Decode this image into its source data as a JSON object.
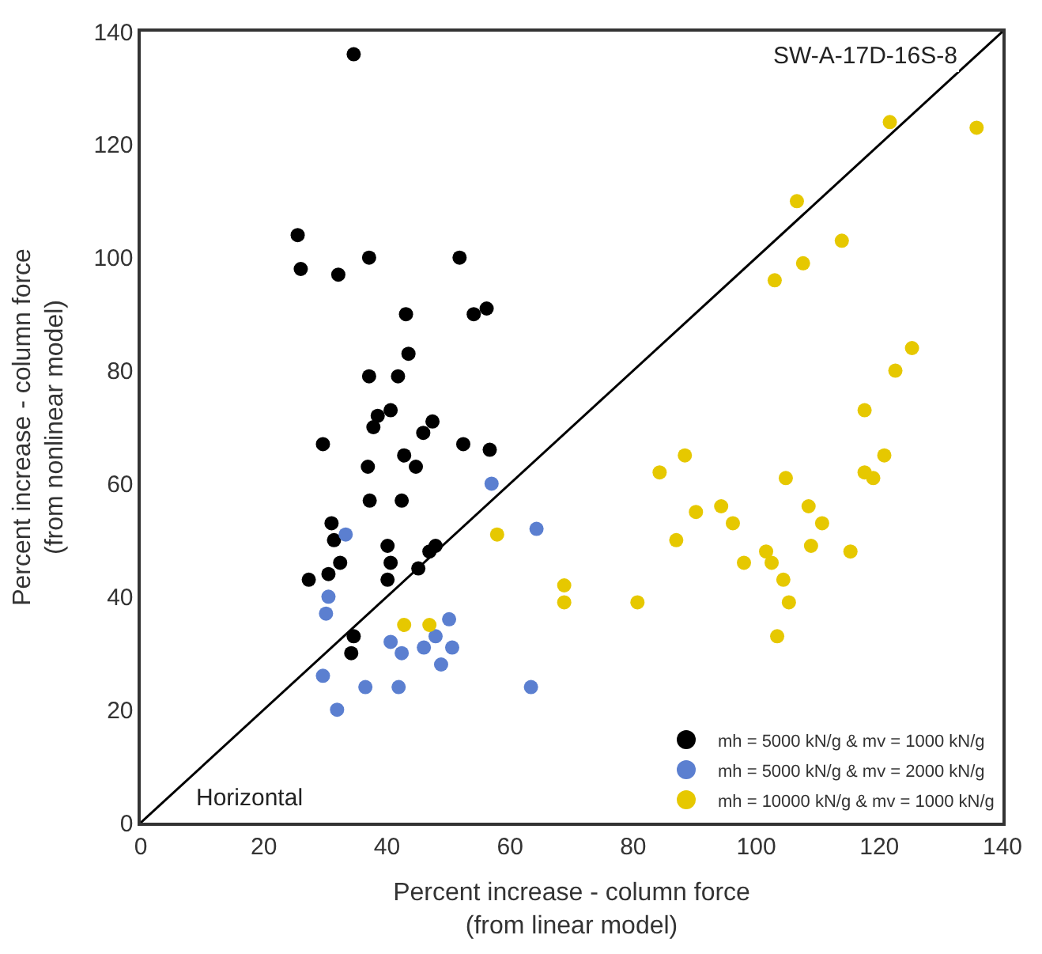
{
  "chart_data": {
    "type": "scatter",
    "xlabel": "Percent increase - column force\n(from linear model)",
    "ylabel": "Percent increase - column force\n(from nonlinear model)",
    "xlim": [
      0,
      140
    ],
    "ylim": [
      0,
      140
    ],
    "xticks": [
      0,
      20,
      40,
      60,
      80,
      100,
      120,
      140
    ],
    "yticks": [
      0,
      20,
      40,
      60,
      80,
      100,
      120,
      140
    ],
    "legend": "bottom right",
    "marker": "circle",
    "annotations": [
      "SW-A-17D-16S-8",
      "Horizontal"
    ],
    "series": [
      {
        "name": "mh = 5000 kN/g & mv = 1000 kN/g",
        "color": "#000000",
        "x": [
          34.6,
          25.5,
          26,
          32.1,
          37.1,
          51.8,
          43.1,
          54.1,
          56.2,
          43.5,
          37.1,
          41.8,
          40.6,
          38.5,
          37.8,
          47.4,
          45.9,
          29.6,
          52.4,
          56.7,
          36.9,
          42.8,
          44.7,
          37.2,
          42.4,
          31,
          31.4,
          40.1,
          47.9,
          46.9,
          32.4,
          30.5,
          27.3,
          40.6,
          45.1,
          40.1,
          34.6,
          34.2
        ],
        "values": [
          136,
          104,
          98,
          97,
          100,
          100,
          90,
          90,
          91,
          83,
          79,
          79,
          73,
          72,
          70,
          71,
          69,
          67,
          67,
          66,
          63,
          65,
          63,
          57,
          57,
          53,
          50,
          49,
          49,
          48,
          46,
          44,
          43,
          46,
          45,
          43,
          33,
          30
        ]
      },
      {
        "name": "mh = 5000 kN/g & mv = 2000 kN/g",
        "color": "#5b7fd0",
        "x": [
          33.3,
          57,
          64.3,
          30.5,
          30.1,
          40.6,
          42.4,
          46,
          48.8,
          50.1,
          50.6,
          29.6,
          36.5,
          41.9,
          31.9,
          63.4,
          47.9
        ],
        "values": [
          51,
          60,
          52,
          40,
          37,
          32,
          30,
          31,
          28,
          36,
          31,
          26,
          24,
          24,
          20,
          24,
          33
        ]
      },
      {
        "name": "mh = 10000 kN/g & mv = 1000 kN/g",
        "color": "#e6c800",
        "x": [
          57.9,
          42.8,
          46.9,
          68.8,
          121.7,
          135.8,
          106.6,
          113.9,
          107.6,
          103,
          125.3,
          122.6,
          117.6,
          120.8,
          88.4,
          84.3,
          104.8,
          117.6,
          119,
          90.2,
          94.3,
          96.2,
          87,
          108.5,
          110.7,
          108.9,
          115.3,
          101.6,
          102.5,
          104.4,
          98,
          68.8,
          80.7,
          105.3,
          103.4
        ],
        "values": [
          51,
          35,
          35,
          42,
          124,
          123,
          110,
          103,
          99,
          96,
          84,
          80,
          73,
          65,
          65,
          62,
          61,
          62,
          61,
          55,
          56,
          53,
          50,
          56,
          53,
          49,
          48,
          48,
          46,
          43,
          46,
          39,
          39,
          39,
          33
        ]
      },
      {
        "type": "line",
        "color": "#000000",
        "marker": "none",
        "x": [
          0,
          140
        ],
        "values": [
          0,
          140
        ]
      }
    ]
  }
}
